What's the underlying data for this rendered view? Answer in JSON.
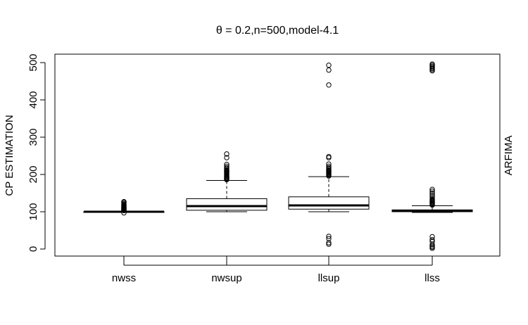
{
  "chart_data": {
    "type": "box",
    "title": "θ = 0.2,n=500,model-4.1",
    "xlabel": "",
    "ylabel": "CP ESTIMATION",
    "right_label": "ARFIMA",
    "ylim": [
      -15,
      530
    ],
    "yticks": [
      0,
      100,
      200,
      300,
      400,
      500
    ],
    "categories": [
      "nwss",
      "nwsup",
      "llsup",
      "llss"
    ],
    "boxes": [
      {
        "name": "nwss",
        "whisker_low": 98,
        "q1": 99,
        "median": 100,
        "q3": 100,
        "whisker_high": 102,
        "outliers": [
          97,
          103,
          104,
          105,
          106,
          107,
          108,
          109,
          110,
          111,
          112,
          113,
          114,
          115,
          116,
          118,
          120,
          122,
          125,
          127
        ]
      },
      {
        "name": "nwsup",
        "whisker_low": 100,
        "q1": 104,
        "median": 115,
        "q3": 135,
        "whisker_high": 184,
        "outliers": [
          186,
          188,
          190,
          192,
          194,
          196,
          198,
          200,
          202,
          204,
          206,
          208,
          210,
          212,
          215,
          218,
          222,
          227,
          245,
          255
        ]
      },
      {
        "name": "llsup",
        "whisker_low": 100,
        "q1": 107,
        "median": 117,
        "q3": 140,
        "whisker_high": 194,
        "outliers": [
          13,
          17,
          28,
          34,
          196,
          198,
          200,
          202,
          204,
          206,
          208,
          210,
          212,
          215,
          218,
          222,
          228,
          245,
          248,
          440,
          480,
          493
        ]
      },
      {
        "name": "llss",
        "whisker_low": 98,
        "q1": 100,
        "median": 102,
        "q3": 105,
        "whisker_high": 116,
        "outliers": [
          2,
          5,
          8,
          12,
          20,
          25,
          33,
          118,
          120,
          122,
          124,
          126,
          128,
          130,
          132,
          135,
          140,
          145,
          150,
          155,
          160,
          478,
          481,
          484,
          487,
          490,
          493,
          496
        ]
      }
    ]
  }
}
